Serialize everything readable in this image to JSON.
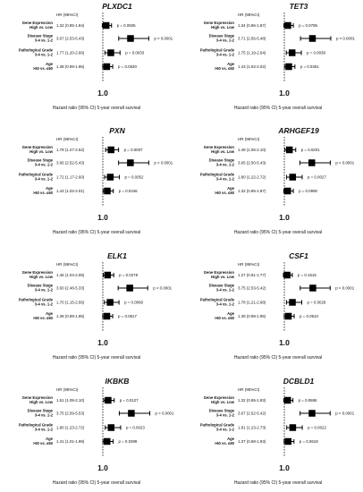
{
  "common": {
    "hr_header": "HR (95%CI)",
    "x_tick": "1.0",
    "x_label": "Hazard ratio (95% CI)  5-year overall survival",
    "rows": [
      [
        "Gene Expression",
        "High vs. Low"
      ],
      [
        "Disease Stage",
        "3-4 vs. 1-2"
      ],
      [
        "Pathological Grade",
        "3-4 vs. 1-2"
      ],
      [
        "Age",
        ">60 vs. ≤60"
      ]
    ],
    "marker_color": "#000000"
  },
  "chart_data": [
    {
      "type": "forest",
      "title": "PLXDC1",
      "xlabel": "Hazard ratio (95% CI)  5-year overall survival",
      "reference_line": 1.0,
      "categories": [
        "Gene Expression High vs. Low",
        "Disease Stage 3-4 vs. 1-2",
        "Pathological Grade 3-4 vs. 1-2",
        "Age >60 vs. ≤60"
      ],
      "hr": [
        1.32,
        3.67,
        1.77,
        1.38
      ],
      "ci": [
        [
          0.95,
          1.84
        ],
        [
          2.53,
          5.43
        ],
        [
          1.2,
          2.66
        ],
        [
          0.99,
          1.95
        ]
      ],
      "labels": [
        "1.32 (0.95-1.84)",
        "3.67 (2.53-5.43)",
        "1.77 (1.20-2.66)",
        "1.38 (0.99-1.95)"
      ],
      "p": [
        "p = 0.0925",
        "p < 0.0001",
        "p = 0.0033",
        "p = 0.0530"
      ]
    },
    {
      "type": "forest",
      "title": "TET3",
      "xlabel": "Hazard ratio (95% CI)  5-year overall survival",
      "reference_line": 1.0,
      "categories": [
        "Gene Expression High vs. Low",
        "Disease Stage 3-4 vs. 1-2",
        "Pathological Grade 3-4 vs. 1-2",
        "Age >60 vs. ≤60"
      ],
      "hr": [
        1.34,
        3.71,
        1.75,
        1.43
      ],
      "ci": [
        [
          0.96,
          1.87
        ],
        [
          2.56,
          5.48
        ],
        [
          1.19,
          2.64
        ],
        [
          1.02,
          2.02
        ]
      ],
      "labels": [
        "1.34 (0.96-1.87)",
        "3.71 (2.56-5.48)",
        "1.75 (1.19-2.64)",
        "1.43 (1.02-2.02)"
      ],
      "p": [
        "p = 0.0785",
        "p < 0.0001",
        "p = 0.0038",
        "p = 0.0351"
      ]
    },
    {
      "type": "forest",
      "title": "PXN",
      "xlabel": "Hazard ratio (95% CI)  5-year overall survival",
      "reference_line": 1.0,
      "categories": [
        "Gene Expression High vs. Low",
        "Disease Stage 3-4 vs. 1-2",
        "Pathological Grade 3-4 vs. 1-2",
        "Age >60 vs. ≤60"
      ],
      "hr": [
        1.79,
        3.66,
        1.72,
        1.43
      ],
      "ci": [
        [
          1.27,
          2.52
        ],
        [
          2.52,
          5.43
        ],
        [
          1.17,
          2.6
        ],
        [
          1.02,
          2.01
        ]
      ],
      "labels": [
        "1.79 (1.27-2.52)",
        "3.66 (2.52-5.43)",
        "1.72 (1.17-2.60)",
        "1.43 (1.02-2.01)"
      ],
      "p": [
        "p = 0.0007",
        "p < 0.0001",
        "p = 0.0052",
        "p = 0.0346"
      ]
    },
    {
      "type": "forest",
      "title": "ARHGEF19",
      "xlabel": "Hazard ratio (95% CI)  5-year overall survival",
      "reference_line": 1.0,
      "categories": [
        "Gene Expression High vs. Low",
        "Disease Stage 3-4 vs. 1-2",
        "Pathological Grade 3-4 vs. 1-2",
        "Age >60 vs. ≤60"
      ],
      "hr": [
        1.49,
        3.65,
        1.8,
        1.32
      ],
      "ci": [
        [
          1.06,
          2.1
        ],
        [
          2.5,
          5.43
        ],
        [
          1.22,
          2.72
        ],
        [
          0.95,
          1.87
        ]
      ],
      "labels": [
        "1.49 (1.06-2.10)",
        "3.65 (2.50-5.43)",
        "1.80 (1.22-2.72)",
        "1.32 (0.95-1.87)"
      ],
      "p": [
        "p = 0.0201",
        "p < 0.0001",
        "p = 0.0027",
        "p = 0.0990"
      ]
    },
    {
      "type": "forest",
      "title": "ELK1",
      "xlabel": "Hazard ratio (95% CI)  5-year overall survival",
      "reference_line": 1.0,
      "categories": [
        "Gene Expression High vs. Low",
        "Disease Stage 3-4 vs. 1-2",
        "Pathological Grade 3-4 vs. 1-2",
        "Age >60 vs. ≤60"
      ],
      "hr": [
        1.46,
        3.6,
        1.7,
        1.39
      ],
      "ci": [
        [
          1.04,
          2.05
        ],
        [
          2.48,
          5.33
        ],
        [
          1.15,
          2.56
        ],
        [
          0.99,
          1.95
        ]
      ],
      "labels": [
        "1.46 (1.04-2.05)",
        "3.60 (2.48-5.33)",
        "1.70 (1.15-2.56)",
        "1.39 (0.99-1.95)"
      ],
      "p": [
        "p = 0.0278",
        "p < 0.0001",
        "p = 0.0068",
        "p = 0.0517"
      ]
    },
    {
      "type": "forest",
      "title": "CSF1",
      "xlabel": "Hazard ratio (95% CI)  5-year overall survival",
      "reference_line": 1.0,
      "categories": [
        "Gene Expression High vs. Low",
        "Disease Stage 3-4 vs. 1-2",
        "Pathological Grade 3-4 vs. 1-2",
        "Age >60 vs. ≤60"
      ],
      "hr": [
        1.27,
        3.75,
        1.78,
        1.39
      ],
      "ci": [
        [
          0.91,
          1.77
        ],
        [
          2.53,
          5.42
        ],
        [
          1.21,
          2.68
        ],
        [
          0.99,
          1.95
        ]
      ],
      "labels": [
        "1.27 (0.91-1.77)",
        "3.75 (2.53-5.42)",
        "1.78 (1.21-2.68)",
        "1.39 (0.99-1.95)"
      ],
      "p": [
        "p = 0.1516",
        "p < 0.0001",
        "p = 0.0029",
        "p = 0.0510"
      ]
    },
    {
      "type": "forest",
      "title": "IKBKB",
      "xlabel": "Hazard ratio (95% CI)  5-year overall survival",
      "reference_line": 1.0,
      "categories": [
        "Gene Expression High vs. Low",
        "Disease Stage 3-4 vs. 1-2",
        "Pathological Grade 3-4 vs. 1-2",
        "Age >60 vs. ≤60"
      ],
      "hr": [
        1.51,
        3.75,
        1.8,
        1.41
      ],
      "ci": [
        [
          1.09,
          2.1
        ],
        [
          2.59,
          5.53
        ],
        [
          1.23,
          2.72
        ],
        [
          1.01,
          1.99
        ]
      ],
      "labels": [
        "1.51 (1.09-2.10)",
        "3.75 (2.59-5.53)",
        "1.80 (1.23-2.72)",
        "1.41 (1.01-1.99)"
      ],
      "p": [
        "p = 0.0127",
        "p < 0.0001",
        "p = 0.0023",
        "p = 0.0399"
      ]
    },
    {
      "type": "forest",
      "title": "DCBLD1",
      "xlabel": "Hazard ratio (95% CI)  5-year overall survival",
      "reference_line": 1.0,
      "categories": [
        "Gene Expression High vs. Low",
        "Disease Stage 3-4 vs. 1-2",
        "Pathological Grade 3-4 vs. 1-2",
        "Age >60 vs. ≤60"
      ],
      "hr": [
        1.32,
        3.67,
        1.81,
        1.37
      ],
      "ci": [
        [
          0.95,
          1.83
        ],
        [
          2.52,
          5.42
        ],
        [
          1.23,
          2.73
        ],
        [
          0.98,
          1.93
        ]
      ],
      "labels": [
        "1.32 (0.95-1.83)",
        "3.67 (2.52-5.42)",
        "1.81 (1.23-2.73)",
        "1.37 (0.98-1.93)"
      ],
      "p": [
        "p = 0.0865",
        "p < 0.0001",
        "p = 0.0022",
        "p = 0.0618"
      ]
    }
  ]
}
